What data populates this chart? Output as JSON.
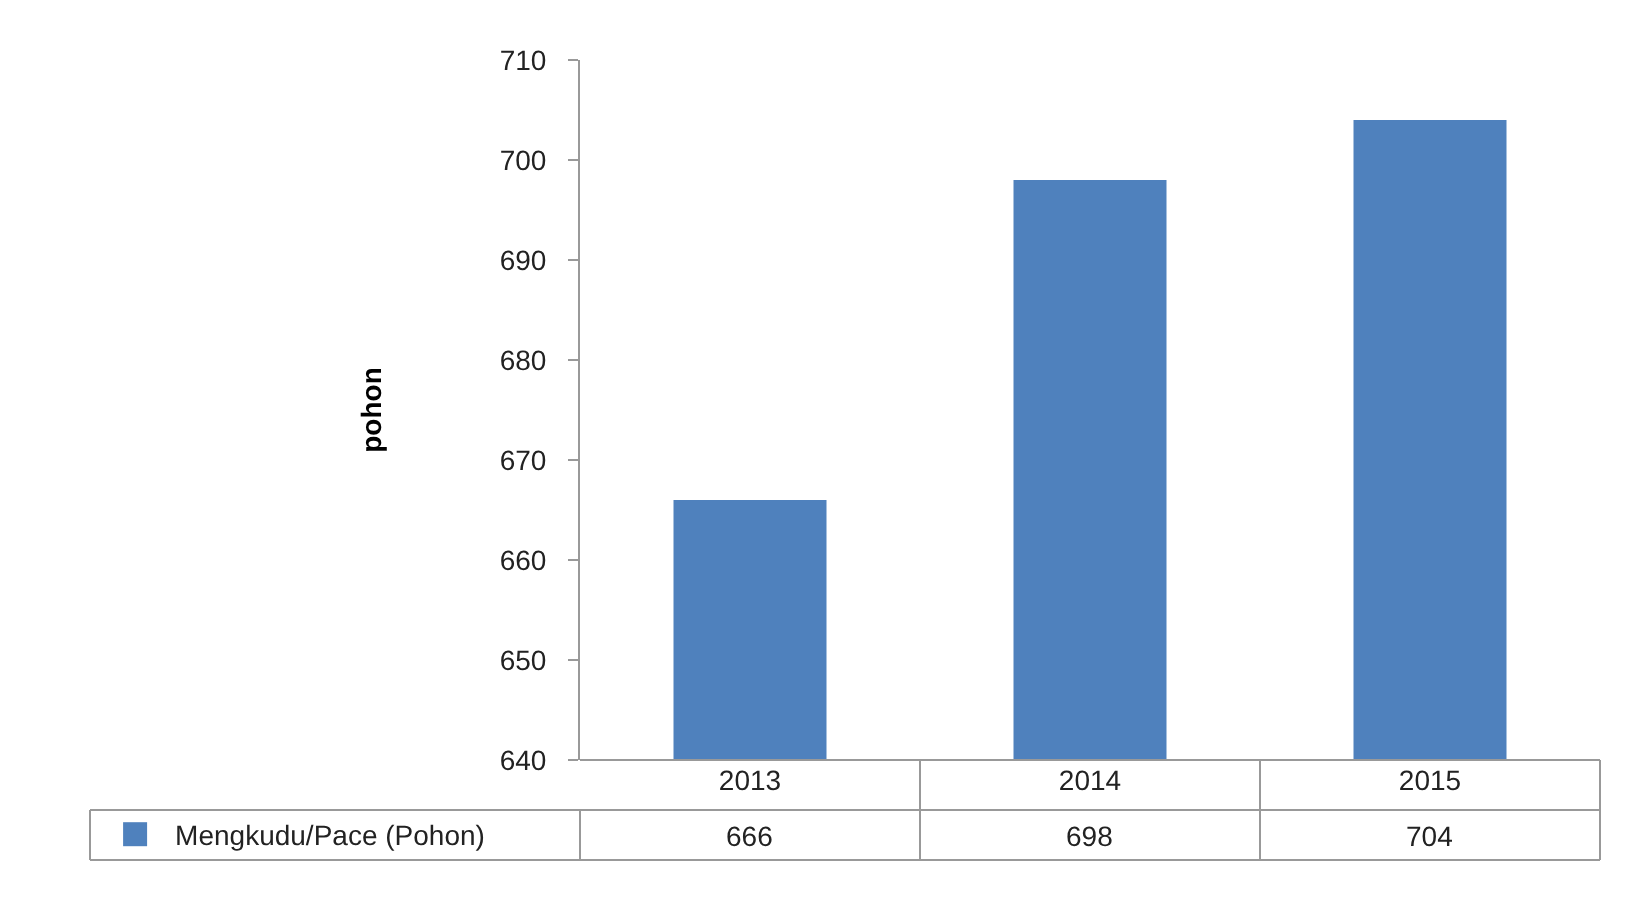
{
  "chart_data": {
    "type": "bar",
    "ylabel": "pohon",
    "categories": [
      "2013",
      "2014",
      "2015"
    ],
    "series": [
      {
        "name": "Mengkudu/Pace (Pohon)",
        "color": "#4f81bd",
        "values": [
          666,
          698,
          704
        ]
      }
    ],
    "ylim": [
      640,
      710
    ],
    "yticks": [
      640,
      650,
      660,
      670,
      680,
      690,
      700,
      710
    ],
    "grid": false,
    "legend": "bottom left",
    "data_labels": true
  }
}
